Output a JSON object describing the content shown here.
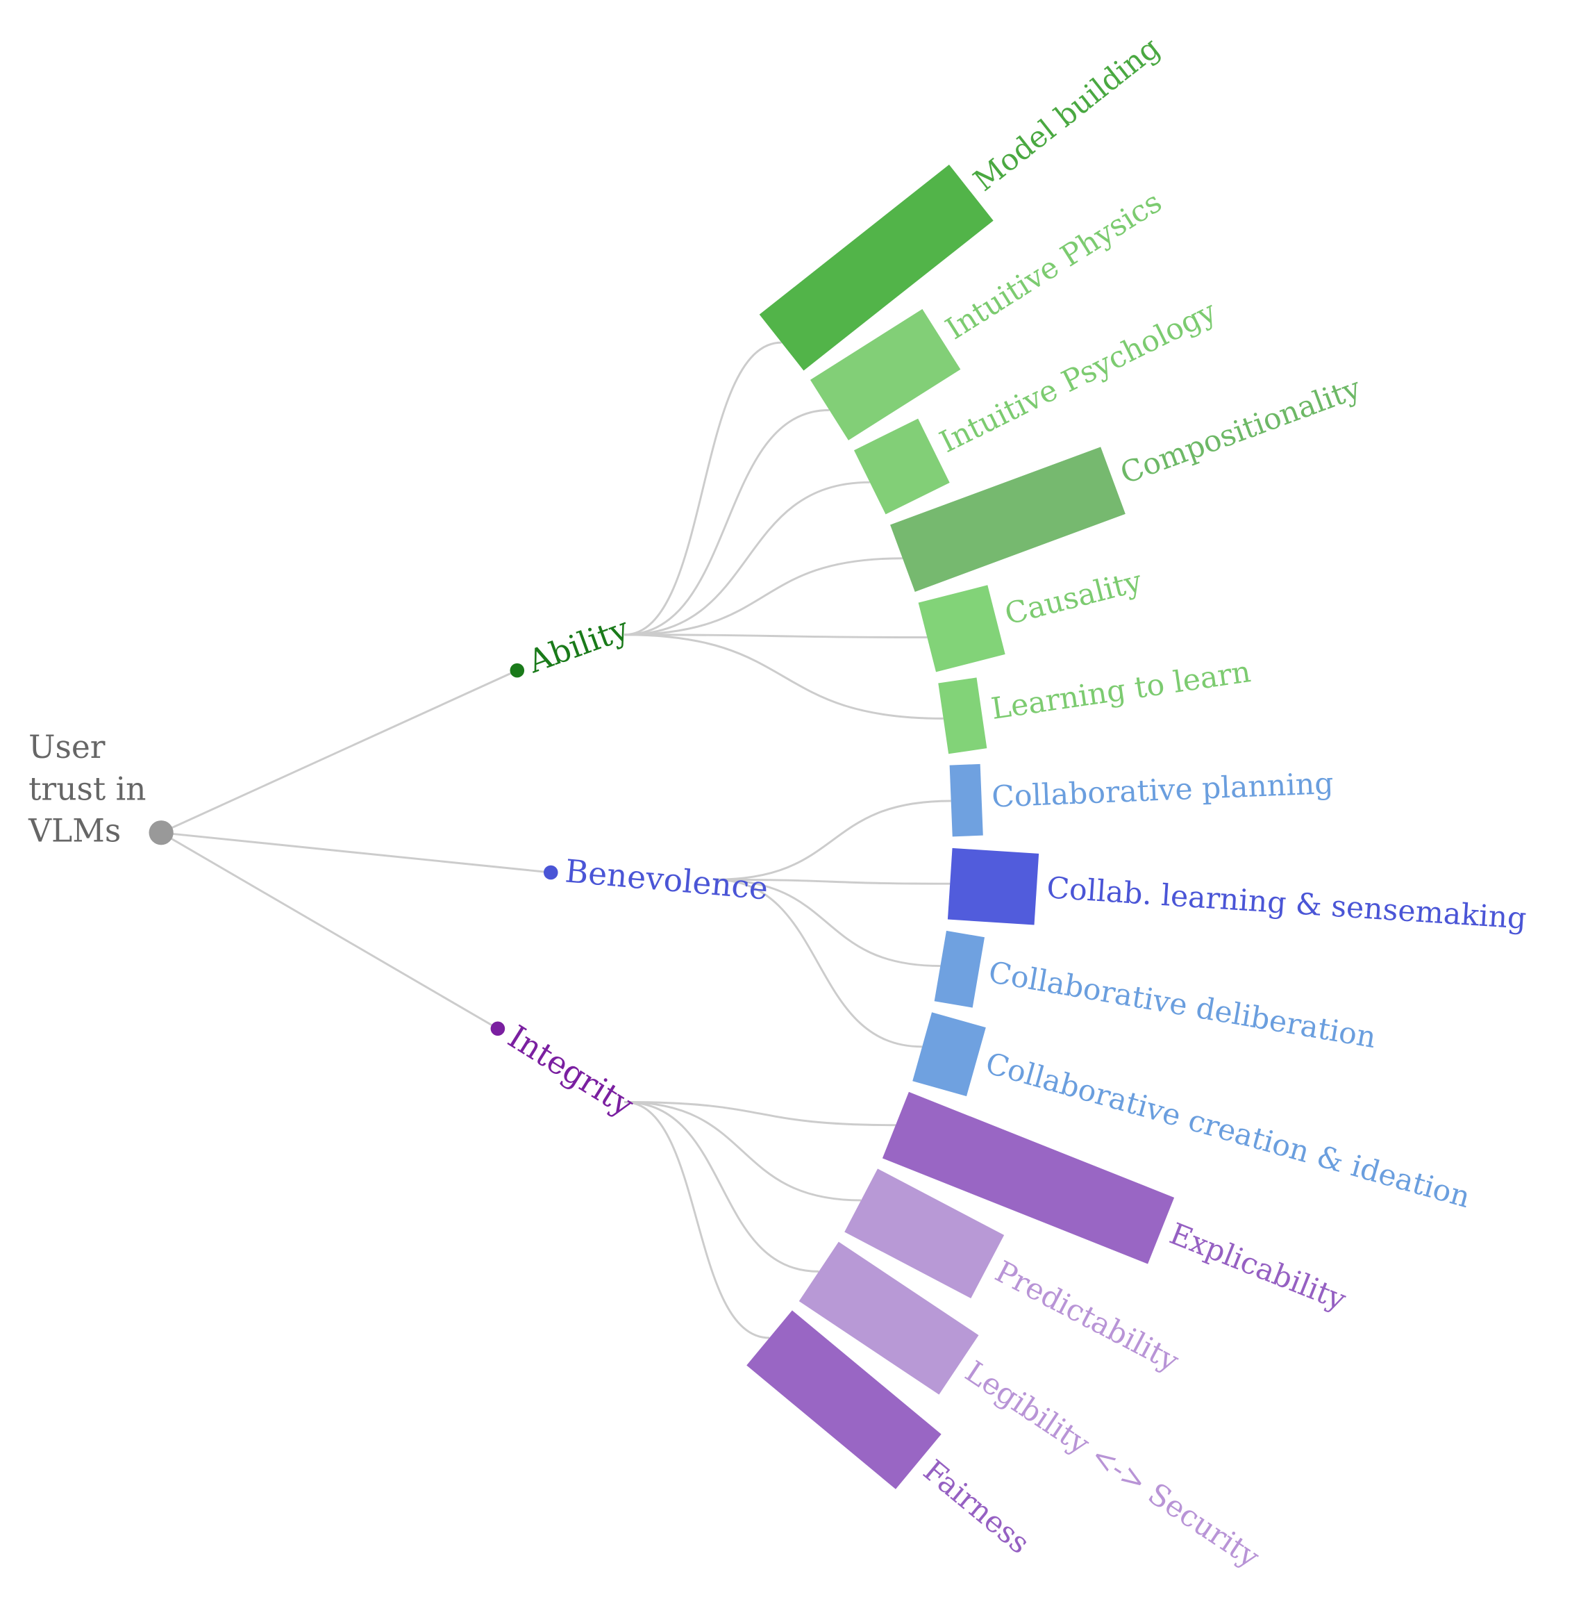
{
  "root": {
    "label_lines": [
      "User",
      "trust in",
      "VLMs"
    ]
  },
  "branches": [
    {
      "label": "Ability",
      "leaves": [
        "Model building",
        "Intuitive Physics",
        "Intuitive Psychology",
        "Compositionality",
        "Causality",
        "Learning to learn"
      ]
    },
    {
      "label": "Benevolence",
      "leaves": [
        "Collaborative planning",
        "Collab. learning & sensemaking",
        "Collaborative deliberation",
        "Collaborative creation & ideation"
      ]
    },
    {
      "label": "Integrity",
      "leaves": [
        "Explicability",
        "Predictability",
        "Legibility <-> Security",
        "Fairness"
      ]
    }
  ]
}
